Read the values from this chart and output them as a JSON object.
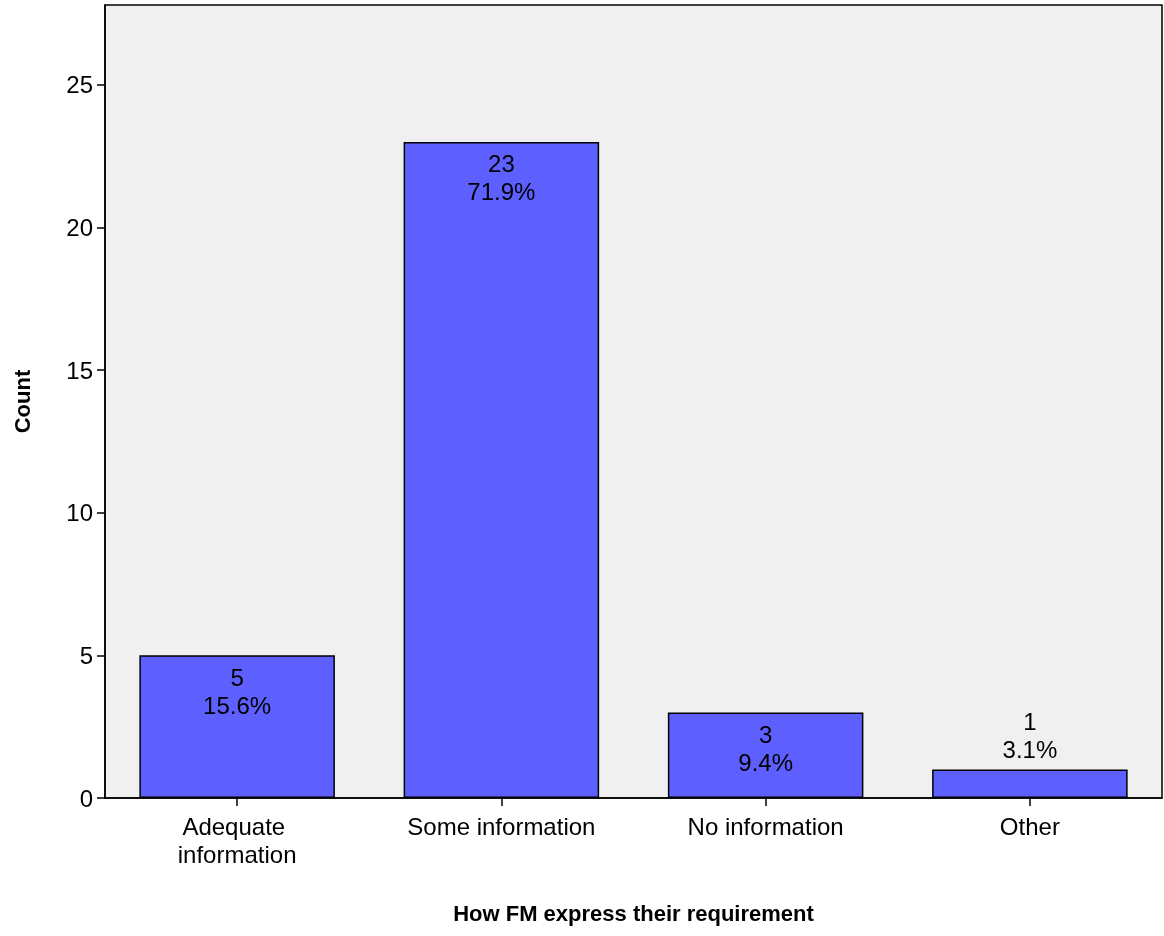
{
  "chart_data": {
    "type": "bar",
    "xlabel": "How FM express their requirement",
    "ylabel": "Count",
    "categories": [
      "Adequate information",
      "Some information",
      "No information",
      "Other"
    ],
    "values": [
      5,
      23,
      3,
      1
    ],
    "value_labels": [
      "5\n15.6%",
      "23\n71.9%",
      "3\n9.4%",
      "1\n3.1%"
    ],
    "color": "#5d5fff",
    "ylim": [
      0,
      27.8
    ],
    "yticks": [
      0,
      5,
      10,
      15,
      20,
      25
    ],
    "grid": false
  }
}
